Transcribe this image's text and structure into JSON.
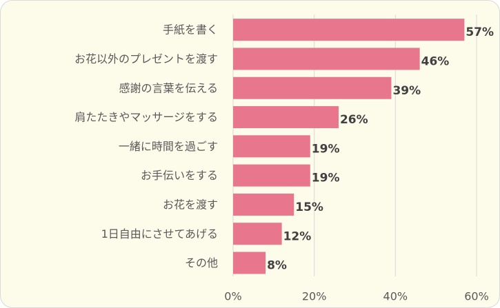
{
  "chart_data": {
    "type": "bar",
    "orientation": "horizontal",
    "categories": [
      "手紙を書く",
      "お花以外のプレゼントを渡す",
      "感謝の言葉を伝える",
      "肩たたきやマッサージをする",
      "一緒に時間を過ごす",
      "お手伝いをする",
      "お花を渡す",
      "1日自由にさせてあげる",
      "その他"
    ],
    "values": [
      57,
      46,
      39,
      26,
      19,
      19,
      15,
      12,
      8
    ],
    "value_labels": [
      "57%",
      "46%",
      "39%",
      "26%",
      "19%",
      "19%",
      "15%",
      "12%",
      "8%"
    ],
    "xlim": [
      0,
      60
    ],
    "x_ticks": [
      0,
      20,
      40,
      60
    ],
    "x_tick_labels": [
      "0%",
      "20%",
      "40%",
      "60%"
    ],
    "title": "",
    "xlabel": "",
    "ylabel": "",
    "grid": true,
    "legend": "none",
    "colors": {
      "bar": "#e8768d",
      "background": "#fdfbea",
      "grid": "#d9d9d9"
    }
  }
}
